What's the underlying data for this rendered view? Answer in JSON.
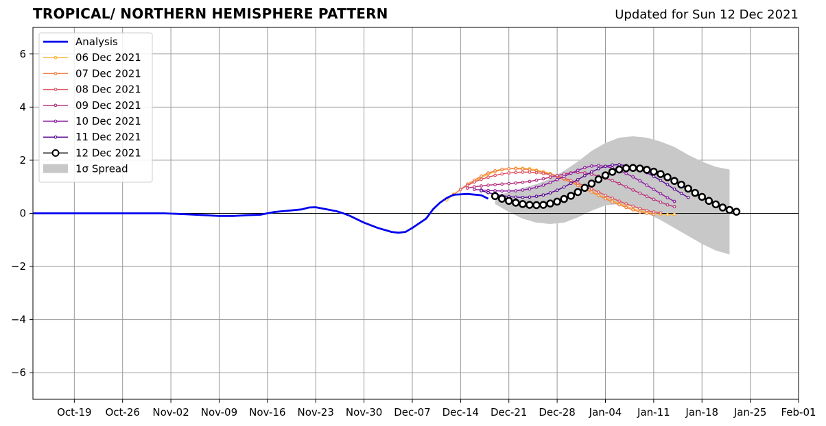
{
  "header": {
    "title": "TROPICAL/ NORTHERN HEMISPHERE PATTERN",
    "updated": "Updated for Sun 12 Dec 2021"
  },
  "colors": {
    "analysis": "#0000ee",
    "spread": "#c8c8c8",
    "grid": "#999999",
    "series": [
      "#fcb53a",
      "#f08447",
      "#dc5665",
      "#b7357d",
      "#8e1fa0",
      "#5a0f94",
      "#000000"
    ]
  },
  "chart_data": {
    "type": "line",
    "title": "TROPICAL/ NORTHERN HEMISPHERE PATTERN",
    "xlabel": "",
    "ylabel": "",
    "x_type": "date",
    "xlim": [
      "2021-10-13",
      "2022-02-01"
    ],
    "ylim": [
      -7,
      7
    ],
    "x_tick_labels": [
      "Oct-19",
      "Oct-26",
      "Nov-02",
      "Nov-09",
      "Nov-16",
      "Nov-23",
      "Nov-30",
      "Dec-07",
      "Dec-14",
      "Dec-21",
      "Dec-28",
      "Jan-04",
      "Jan-11",
      "Jan-18",
      "Jan-25",
      "Feb-01"
    ],
    "x_tick_dates": [
      "2021-10-19",
      "2021-10-26",
      "2021-11-02",
      "2021-11-09",
      "2021-11-16",
      "2021-11-23",
      "2021-11-30",
      "2021-12-07",
      "2021-12-14",
      "2021-12-21",
      "2021-12-28",
      "2022-01-04",
      "2022-01-11",
      "2022-01-18",
      "2022-01-25",
      "2022-02-01"
    ],
    "y_ticks": [
      6,
      4,
      2,
      0,
      -2,
      -4,
      -6
    ],
    "y_tick_labels": [
      "6",
      "4",
      "2",
      "0",
      "−2",
      "−4",
      "−6"
    ],
    "grid": true,
    "legend_position": "top-left",
    "analysis": {
      "name": "Analysis",
      "points": [
        [
          "2021-10-13",
          0.0
        ],
        [
          "2021-10-20",
          0.0
        ],
        [
          "2021-10-27",
          0.0
        ],
        [
          "2021-11-01",
          0.0
        ],
        [
          "2021-11-04",
          -0.03
        ],
        [
          "2021-11-07",
          -0.07
        ],
        [
          "2021-11-09",
          -0.1
        ],
        [
          "2021-11-11",
          -0.1
        ],
        [
          "2021-11-13",
          -0.07
        ],
        [
          "2021-11-15",
          -0.05
        ],
        [
          "2021-11-17",
          0.05
        ],
        [
          "2021-11-19",
          0.1
        ],
        [
          "2021-11-21",
          0.15
        ],
        [
          "2021-11-22",
          0.22
        ],
        [
          "2021-11-23",
          0.23
        ],
        [
          "2021-11-24",
          0.18
        ],
        [
          "2021-11-26",
          0.08
        ],
        [
          "2021-11-27",
          0.0
        ],
        [
          "2021-11-28",
          -0.1
        ],
        [
          "2021-11-30",
          -0.35
        ],
        [
          "2021-12-02",
          -0.55
        ],
        [
          "2021-12-04",
          -0.7
        ],
        [
          "2021-12-05",
          -0.73
        ],
        [
          "2021-12-06",
          -0.7
        ],
        [
          "2021-12-07",
          -0.55
        ],
        [
          "2021-12-09",
          -0.2
        ],
        [
          "2021-12-10",
          0.15
        ],
        [
          "2021-12-11",
          0.4
        ],
        [
          "2021-12-12",
          0.58
        ],
        [
          "2021-12-13",
          0.7
        ],
        [
          "2021-12-15",
          0.73
        ],
        [
          "2021-12-17",
          0.68
        ],
        [
          "2021-12-18",
          0.55
        ]
      ]
    },
    "spread": {
      "name": "1σ Spread",
      "x": [
        "2021-12-19",
        "2021-12-21",
        "2021-12-23",
        "2021-12-25",
        "2021-12-27",
        "2021-12-29",
        "2021-12-31",
        "2022-01-02",
        "2022-01-04",
        "2022-01-06",
        "2022-01-08",
        "2022-01-10",
        "2022-01-12",
        "2022-01-14",
        "2022-01-16",
        "2022-01-18",
        "2022-01-20",
        "2022-01-22"
      ],
      "upper": [
        0.65,
        0.8,
        0.95,
        1.1,
        1.3,
        1.6,
        1.95,
        2.35,
        2.65,
        2.85,
        2.9,
        2.85,
        2.7,
        2.5,
        2.2,
        1.95,
        1.75,
        1.65
      ],
      "lower": [
        0.35,
        0.05,
        -0.2,
        -0.35,
        -0.4,
        -0.35,
        -0.15,
        0.1,
        0.3,
        0.35,
        0.25,
        0.0,
        -0.25,
        -0.55,
        -0.85,
        -1.15,
        -1.4,
        -1.55
      ]
    },
    "series": [
      {
        "name": "06 Dec 2021",
        "start": "2021-12-12",
        "marker": "small",
        "values": [
          0.5,
          0.72,
          0.9,
          1.05,
          1.2,
          1.35,
          1.47,
          1.57,
          1.64,
          1.68,
          1.7,
          1.7,
          1.68,
          1.63,
          1.57,
          1.5,
          1.42,
          1.32,
          1.2,
          1.08,
          0.95,
          0.83,
          0.7,
          0.58,
          0.47,
          0.37,
          0.27,
          0.18,
          0.1,
          0.04,
          0.0,
          -0.03,
          -0.05,
          -0.04
        ]
      },
      {
        "name": "07 Dec 2021",
        "start": "2021-12-13",
        "marker": "small",
        "values": [
          0.7,
          0.9,
          1.1,
          1.25,
          1.4,
          1.52,
          1.6,
          1.66,
          1.68,
          1.68,
          1.67,
          1.64,
          1.6,
          1.54,
          1.47,
          1.38,
          1.28,
          1.17,
          1.05,
          0.92,
          0.8,
          0.67,
          0.55,
          0.43,
          0.32,
          0.22,
          0.13,
          0.05,
          0.0,
          -0.04
        ]
      },
      {
        "name": "08 Dec 2021",
        "start": "2021-12-14",
        "marker": "small",
        "values": [
          0.9,
          1.05,
          1.18,
          1.28,
          1.36,
          1.43,
          1.48,
          1.52,
          1.54,
          1.55,
          1.55,
          1.53,
          1.5,
          1.46,
          1.4,
          1.33,
          1.24,
          1.14,
          1.03,
          0.92,
          0.8,
          0.68,
          0.57,
          0.46,
          0.36,
          0.27,
          0.18,
          0.11,
          0.05,
          0.02
        ]
      },
      {
        "name": "09 Dec 2021",
        "start": "2021-12-15",
        "marker": "small",
        "values": [
          0.95,
          1.0,
          1.03,
          1.06,
          1.08,
          1.1,
          1.12,
          1.14,
          1.17,
          1.2,
          1.25,
          1.3,
          1.36,
          1.42,
          1.48,
          1.52,
          1.54,
          1.52,
          1.47,
          1.4,
          1.32,
          1.23,
          1.12,
          1.0,
          0.88,
          0.76,
          0.64,
          0.53,
          0.42,
          0.32,
          0.25
        ]
      },
      {
        "name": "10 Dec 2021",
        "start": "2021-12-16",
        "marker": "small",
        "values": [
          0.9,
          0.88,
          0.86,
          0.85,
          0.84,
          0.84,
          0.85,
          0.88,
          0.92,
          0.98,
          1.06,
          1.16,
          1.27,
          1.39,
          1.51,
          1.62,
          1.72,
          1.78,
          1.8,
          1.77,
          1.71,
          1.62,
          1.5,
          1.37,
          1.22,
          1.06,
          0.9,
          0.74,
          0.59,
          0.45
        ]
      },
      {
        "name": "11 Dec 2021",
        "start": "2021-12-17",
        "marker": "small",
        "values": [
          0.85,
          0.78,
          0.72,
          0.67,
          0.63,
          0.61,
          0.6,
          0.61,
          0.64,
          0.69,
          0.77,
          0.87,
          0.99,
          1.13,
          1.27,
          1.42,
          1.56,
          1.68,
          1.77,
          1.82,
          1.83,
          1.8,
          1.74,
          1.65,
          1.53,
          1.39,
          1.24,
          1.08,
          0.91,
          0.75,
          0.6
        ]
      },
      {
        "name": "12 Dec 2021",
        "start": "2021-12-19",
        "marker": "large",
        "values": [
          0.65,
          0.55,
          0.47,
          0.4,
          0.35,
          0.32,
          0.31,
          0.32,
          0.37,
          0.44,
          0.54,
          0.66,
          0.8,
          0.96,
          1.12,
          1.28,
          1.43,
          1.56,
          1.65,
          1.7,
          1.71,
          1.69,
          1.64,
          1.57,
          1.48,
          1.36,
          1.22,
          1.08,
          0.93,
          0.77,
          0.62,
          0.47,
          0.34,
          0.22,
          0.13,
          0.06
        ]
      }
    ],
    "legend": [
      "Analysis",
      "06 Dec 2021",
      "07 Dec 2021",
      "08 Dec 2021",
      "09 Dec 2021",
      "10 Dec 2021",
      "11 Dec 2021",
      "12 Dec 2021",
      "1σ Spread"
    ]
  }
}
